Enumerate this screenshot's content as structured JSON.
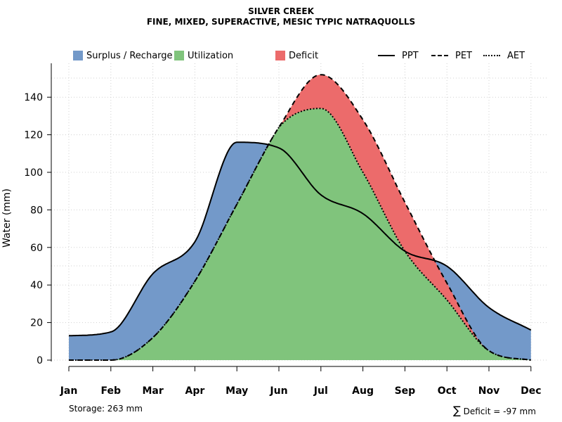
{
  "title": "SILVER CREEK",
  "subtitle": "FINE, MIXED, SUPERACTIVE, MESIC TYPIC NATRAQUOLLS",
  "legend": {
    "surplus": "Surplus / Recharge",
    "utilization": "Utilization",
    "deficit": "Deficit",
    "ppt": "PPT",
    "pet": "PET",
    "aet": "AET"
  },
  "colors": {
    "surplus": "#7399c9",
    "utilization": "#80c47c",
    "deficit": "#ec6b6b",
    "grid": "#d0d0d0",
    "line": "#000000"
  },
  "footer": {
    "storage": "Storage: 263 mm",
    "deficit_symbol": "∑",
    "deficit": "Deficit = -97 mm"
  },
  "chart_data": {
    "type": "area",
    "ylabel": "Water (mm)",
    "xlabel": "",
    "categories": [
      "Jan",
      "Feb",
      "Mar",
      "Apr",
      "May",
      "Jun",
      "Jul",
      "Aug",
      "Sep",
      "Oct",
      "Nov",
      "Dec"
    ],
    "ylim": [
      0,
      155
    ],
    "yticks": [
      0,
      20,
      40,
      60,
      80,
      100,
      120,
      140
    ],
    "grid": true,
    "legend_position": "top",
    "series": [
      {
        "name": "PPT",
        "style": "solid",
        "values": [
          13,
          15,
          46,
          63,
          116,
          113,
          88,
          78,
          58,
          50,
          28,
          16
        ]
      },
      {
        "name": "PET",
        "style": "dashed",
        "values": [
          0,
          0,
          12,
          42,
          83,
          124,
          152,
          128,
          84,
          41,
          5,
          0
        ]
      },
      {
        "name": "AET",
        "style": "dotted",
        "values": [
          0,
          0,
          12,
          42,
          83,
          124,
          134,
          100,
          58,
          32,
          5,
          0
        ]
      }
    ]
  }
}
